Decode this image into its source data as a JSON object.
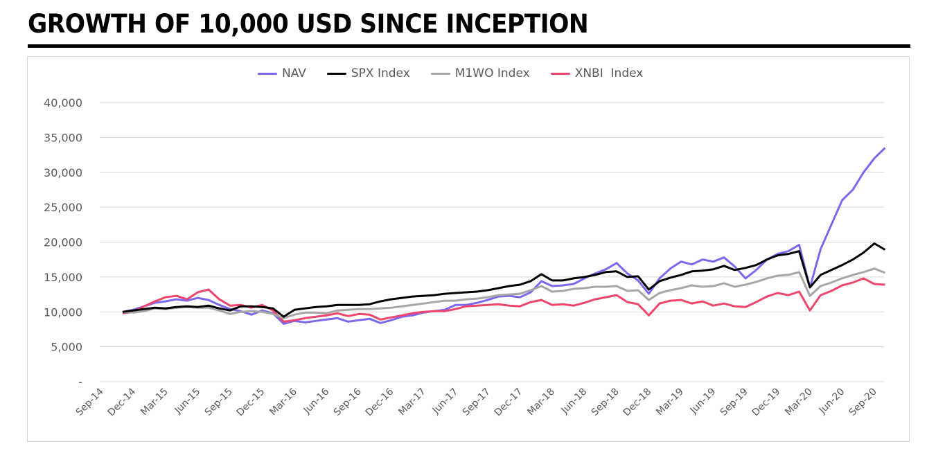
{
  "title": "GROWTH OF 10,000 USD SINCE INCEPTION",
  "colors": {
    "NAV": "#7b68ee",
    "SPX Index": "#000000",
    "M1WO Index": "#a6a6a6",
    "XNBI  Index": "#f0456c",
    "grid": "#d9d9d9",
    "text": "#595959"
  },
  "chart_data": {
    "type": "line",
    "title": "GROWTH OF 10,000 USD SINCE INCEPTION",
    "xlabel": "",
    "ylabel": "",
    "ylim": [
      0,
      40000
    ],
    "grid": true,
    "legend_position": "top-center",
    "y_ticks": [
      0,
      5000,
      10000,
      15000,
      20000,
      25000,
      30000,
      35000,
      40000
    ],
    "y_tick_labels": [
      "-",
      "5,000",
      "10,000",
      "15,000",
      "20,000",
      "25,000",
      "30,000",
      "35,000",
      "40,000"
    ],
    "x_tick_labels": [
      "Sep-14",
      "Dec-14",
      "Mar-15",
      "Jun-15",
      "Sep-15",
      "Dec-15",
      "Mar-16",
      "Jun-16",
      "Sep-16",
      "Dec-16",
      "Mar-17",
      "Jun-17",
      "Sep-17",
      "Dec-17",
      "Mar-18",
      "Jun-18",
      "Sep-18",
      "Dec-18",
      "Mar-19",
      "Jun-19",
      "Sep-19",
      "Dec-19",
      "Mar-20",
      "Jun-20",
      "Sep-20"
    ],
    "x": [
      "Nov-14",
      "Dec-14",
      "Jan-15",
      "Feb-15",
      "Mar-15",
      "Apr-15",
      "May-15",
      "Jun-15",
      "Jul-15",
      "Aug-15",
      "Sep-15",
      "Oct-15",
      "Nov-15",
      "Dec-15",
      "Jan-16",
      "Feb-16",
      "Mar-16",
      "Apr-16",
      "May-16",
      "Jun-16",
      "Jul-16",
      "Aug-16",
      "Sep-16",
      "Oct-16",
      "Nov-16",
      "Dec-16",
      "Jan-17",
      "Feb-17",
      "Mar-17",
      "Apr-17",
      "May-17",
      "Jun-17",
      "Jul-17",
      "Aug-17",
      "Sep-17",
      "Oct-17",
      "Nov-17",
      "Dec-17",
      "Jan-18",
      "Feb-18",
      "Mar-18",
      "Apr-18",
      "May-18",
      "Jun-18",
      "Jul-18",
      "Aug-18",
      "Sep-18",
      "Oct-18",
      "Nov-18",
      "Dec-18",
      "Jan-19",
      "Feb-19",
      "Mar-19",
      "Apr-19",
      "May-19",
      "Jun-19",
      "Jul-19",
      "Aug-19",
      "Sep-19",
      "Oct-19",
      "Nov-19",
      "Dec-19",
      "Jan-20",
      "Feb-20",
      "Mar-20",
      "Apr-20",
      "May-20",
      "Jun-20",
      "Jul-20",
      "Aug-20",
      "Sep-20",
      "Oct-20"
    ],
    "series": [
      {
        "name": "NAV",
        "values": [
          10000,
          10300,
          10800,
          11300,
          11500,
          11800,
          11600,
          12000,
          11700,
          11000,
          10400,
          10100,
          9600,
          10200,
          9800,
          8300,
          8700,
          8500,
          8700,
          8900,
          9100,
          8600,
          8800,
          9000,
          8400,
          8800,
          9300,
          9500,
          9900,
          10100,
          10300,
          11000,
          11000,
          11300,
          11700,
          12200,
          12300,
          12100,
          12800,
          14400,
          13700,
          13800,
          14000,
          14800,
          15500,
          16100,
          17000,
          15500,
          14500,
          12600,
          14800,
          16200,
          17200,
          16800,
          17500,
          17200,
          17800,
          16500,
          14800,
          16000,
          17500,
          18300,
          18700,
          19600,
          13500,
          19000,
          22500,
          26000,
          27500,
          30000,
          32000,
          33500
        ]
      },
      {
        "name": "SPX Index",
        "values": [
          10000,
          10200,
          10400,
          10600,
          10500,
          10700,
          10800,
          10700,
          10900,
          10500,
          10200,
          10800,
          10800,
          10700,
          10500,
          9300,
          10300,
          10500,
          10700,
          10800,
          11000,
          11000,
          11000,
          11100,
          11500,
          11800,
          12000,
          12200,
          12300,
          12400,
          12600,
          12700,
          12800,
          12900,
          13100,
          13400,
          13700,
          13900,
          14400,
          15400,
          14500,
          14500,
          14800,
          15000,
          15300,
          15700,
          15800,
          15000,
          15100,
          13200,
          14400,
          14900,
          15300,
          15800,
          15900,
          16100,
          16600,
          16000,
          16300,
          16700,
          17500,
          18100,
          18300,
          18700,
          13500,
          15300,
          16000,
          16700,
          17500,
          18500,
          19800,
          18900
        ]
      },
      {
        "name": "M1WO Index",
        "values": [
          10000,
          9900,
          10100,
          10500,
          10400,
          10600,
          10700,
          10600,
          10600,
          10200,
          9700,
          10000,
          10100,
          10000,
          9700,
          9100,
          9600,
          9900,
          9900,
          9800,
          10200,
          10300,
          10400,
          10400,
          10500,
          10600,
          10800,
          11000,
          11200,
          11400,
          11600,
          11600,
          11800,
          11900,
          12100,
          12400,
          12500,
          12600,
          13100,
          13700,
          12900,
          13000,
          13300,
          13400,
          13600,
          13600,
          13700,
          13000,
          13100,
          11700,
          12700,
          13100,
          13400,
          13800,
          13600,
          13700,
          14100,
          13600,
          13900,
          14300,
          14800,
          15200,
          15300,
          15700,
          12300,
          13700,
          14200,
          14800,
          15300,
          15700,
          16200,
          15600
        ]
      },
      {
        "name": "XNBI  Index",
        "values": [
          9800,
          10000,
          10800,
          11500,
          12100,
          12300,
          11800,
          12800,
          13200,
          11800,
          10900,
          11000,
          10600,
          11000,
          10200,
          8600,
          8800,
          9100,
          9300,
          9500,
          9800,
          9400,
          9700,
          9600,
          8900,
          9200,
          9500,
          9800,
          10000,
          10100,
          10100,
          10400,
          10800,
          10900,
          11000,
          11100,
          10900,
          10800,
          11400,
          11700,
          11000,
          11100,
          10900,
          11300,
          11800,
          12100,
          12400,
          11400,
          11100,
          9500,
          11200,
          11600,
          11700,
          11200,
          11500,
          10900,
          11200,
          10800,
          10700,
          11400,
          12200,
          12700,
          12400,
          12900,
          10200,
          12400,
          13000,
          13800,
          14200,
          14800,
          14000,
          13900
        ]
      }
    ]
  }
}
